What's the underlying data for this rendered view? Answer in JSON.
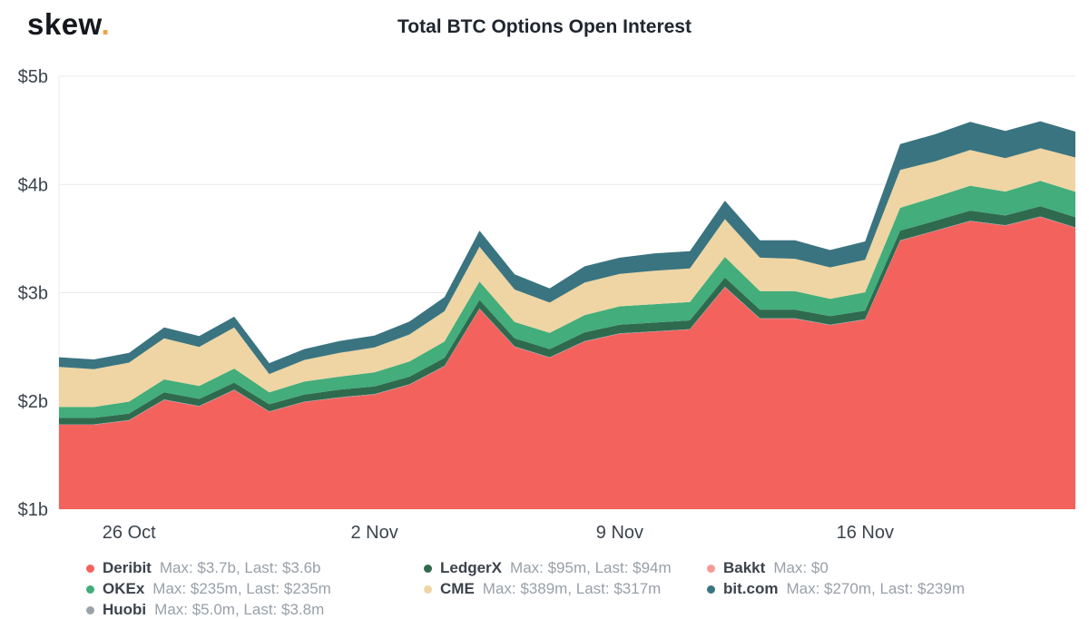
{
  "header": {
    "logo_text": "skew",
    "logo_dot": ".",
    "title": "Total BTC Options Open Interest"
  },
  "chart_data": {
    "type": "area",
    "stacked": true,
    "title": "Total BTC Options Open Interest",
    "unit": "USD billions",
    "ylim": [
      1,
      5
    ],
    "grid": "horizontal",
    "legend_position": "bottom",
    "x": [
      "24 Oct",
      "25 Oct",
      "26 Oct",
      "27 Oct",
      "28 Oct",
      "29 Oct",
      "30 Oct",
      "31 Oct",
      "1 Nov",
      "2 Nov",
      "3 Nov",
      "4 Nov",
      "5 Nov",
      "6 Nov",
      "7 Nov",
      "8 Nov",
      "9 Nov",
      "10 Nov",
      "11 Nov",
      "12 Nov",
      "13 Nov",
      "14 Nov",
      "15 Nov",
      "16 Nov",
      "17 Nov",
      "18 Nov",
      "19 Nov",
      "20 Nov",
      "21 Nov",
      "22 Nov"
    ],
    "x_ticks": [
      {
        "label": "26 Oct",
        "index": 2
      },
      {
        "label": "2 Nov",
        "index": 9
      },
      {
        "label": "9 Nov",
        "index": 16
      },
      {
        "label": "16 Nov",
        "index": 23
      }
    ],
    "y_ticks": [
      {
        "label": "$1b",
        "value": 1
      },
      {
        "label": "$2b",
        "value": 2
      },
      {
        "label": "$3b",
        "value": 3
      },
      {
        "label": "$4b",
        "value": 4
      },
      {
        "label": "$5b",
        "value": 5
      }
    ],
    "series": [
      {
        "name": "Deribit",
        "color": "#f4625d",
        "max": "$3.7b",
        "last": "$3.6b",
        "values": [
          1.78,
          1.78,
          1.82,
          2.01,
          1.95,
          2.1,
          1.9,
          1.99,
          2.03,
          2.06,
          2.15,
          2.32,
          2.85,
          2.5,
          2.4,
          2.55,
          2.62,
          2.64,
          2.66,
          3.05,
          2.76,
          2.76,
          2.7,
          2.75,
          3.48,
          3.57,
          3.66,
          3.62,
          3.7,
          3.6
        ]
      },
      {
        "name": "Huobi",
        "color": "#9aa3ab",
        "max": "$5.0m",
        "last": "$3.8m",
        "values": [
          0.004,
          0.004,
          0.004,
          0.004,
          0.004,
          0.004,
          0.004,
          0.004,
          0.004,
          0.004,
          0.004,
          0.004,
          0.004,
          0.004,
          0.004,
          0.004,
          0.004,
          0.004,
          0.004,
          0.005,
          0.004,
          0.004,
          0.004,
          0.004,
          0.004,
          0.004,
          0.004,
          0.004,
          0.004,
          0.0038
        ]
      },
      {
        "name": "LedgerX",
        "color": "#2f6a4f",
        "max": "$95m",
        "last": "$94m",
        "values": [
          0.06,
          0.06,
          0.06,
          0.065,
          0.065,
          0.065,
          0.065,
          0.065,
          0.07,
          0.07,
          0.07,
          0.075,
          0.08,
          0.075,
          0.075,
          0.08,
          0.08,
          0.08,
          0.08,
          0.085,
          0.08,
          0.08,
          0.08,
          0.08,
          0.09,
          0.09,
          0.095,
          0.09,
          0.095,
          0.094
        ]
      },
      {
        "name": "OKEx",
        "color": "#43ad7b",
        "max": "$235m",
        "last": "$235m",
        "values": [
          0.1,
          0.1,
          0.11,
          0.12,
          0.12,
          0.13,
          0.11,
          0.12,
          0.12,
          0.13,
          0.14,
          0.15,
          0.17,
          0.15,
          0.15,
          0.16,
          0.17,
          0.17,
          0.17,
          0.19,
          0.17,
          0.17,
          0.16,
          0.17,
          0.21,
          0.22,
          0.23,
          0.22,
          0.235,
          0.235
        ]
      },
      {
        "name": "CME",
        "color": "#eed5a3",
        "max": "$389m",
        "last": "$317m",
        "values": [
          0.37,
          0.35,
          0.36,
          0.38,
          0.36,
          0.38,
          0.17,
          0.2,
          0.22,
          0.23,
          0.25,
          0.28,
          0.32,
          0.3,
          0.28,
          0.3,
          0.3,
          0.31,
          0.31,
          0.35,
          0.31,
          0.3,
          0.29,
          0.3,
          0.35,
          0.33,
          0.33,
          0.31,
          0.3,
          0.317
        ]
      },
      {
        "name": "Bakkt",
        "color": "#f79a96",
        "max": "$0",
        "last": "",
        "values": [
          0,
          0,
          0,
          0,
          0,
          0,
          0,
          0,
          0,
          0,
          0,
          0,
          0,
          0,
          0,
          0,
          0,
          0,
          0,
          0,
          0,
          0,
          0,
          0,
          0,
          0,
          0,
          0,
          0,
          0
        ]
      },
      {
        "name": "bit.com",
        "color": "#3a7480",
        "max": "$270m",
        "last": "$239m",
        "values": [
          0.09,
          0.09,
          0.09,
          0.1,
          0.1,
          0.1,
          0.1,
          0.1,
          0.11,
          0.11,
          0.12,
          0.13,
          0.15,
          0.14,
          0.13,
          0.15,
          0.15,
          0.16,
          0.16,
          0.17,
          0.16,
          0.17,
          0.16,
          0.17,
          0.24,
          0.25,
          0.26,
          0.25,
          0.25,
          0.239
        ]
      }
    ]
  },
  "legend": {
    "items": [
      {
        "name": "Deribit",
        "color": "#f4625d",
        "detail": "Max: $3.7b, Last: $3.6b"
      },
      {
        "name": "LedgerX",
        "color": "#2f6a4f",
        "detail": "Max: $95m, Last: $94m"
      },
      {
        "name": "Bakkt",
        "color": "#f79a96",
        "detail": "Max: $0"
      },
      {
        "name": "OKEx",
        "color": "#43ad7b",
        "detail": "Max: $235m, Last: $235m"
      },
      {
        "name": "CME",
        "color": "#eed5a3",
        "detail": "Max: $389m, Last: $317m"
      },
      {
        "name": "bit.com",
        "color": "#3a7480",
        "detail": "Max: $270m, Last: $239m"
      },
      {
        "name": "Huobi",
        "color": "#9aa3ab",
        "detail": "Max: $5.0m, Last: $3.8m"
      }
    ]
  }
}
